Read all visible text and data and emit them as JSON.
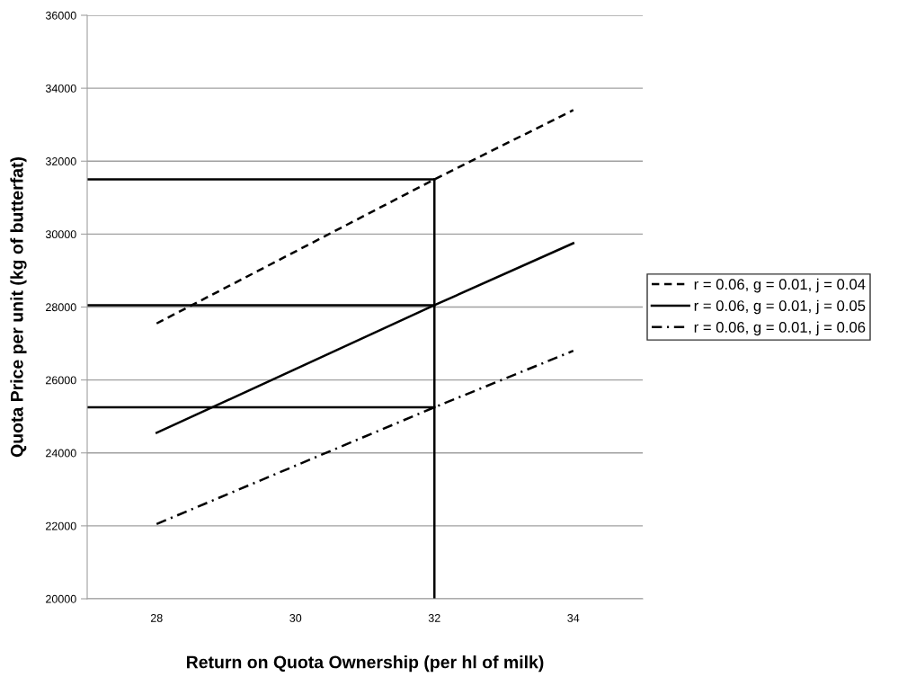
{
  "chart_data": {
    "type": "line",
    "xlabel": "Return on Quota Ownership (per hl of milk)",
    "ylabel": "Quota Price per unit (kg of butterfat)",
    "series": [
      {
        "name": "r = 0.06, g = 0.01, j = 0.04",
        "color": "#000000",
        "line_style": "dashed",
        "x": [
          28,
          32,
          34
        ],
        "values": [
          27550,
          31500,
          33400
        ]
      },
      {
        "name": "r = 0.06, g = 0.01, j = 0.05",
        "color": "#000000",
        "line_style": "solid",
        "x": [
          28,
          32,
          34
        ],
        "values": [
          24550,
          28050,
          29750
        ]
      },
      {
        "name": "r = 0.06, g = 0.01, j = 0.06",
        "color": "#000000",
        "line_style": "dashdot",
        "x": [
          28,
          32,
          34
        ],
        "values": [
          22050,
          25250,
          26800
        ]
      },
      {
        "color": "#000000",
        "line_style": "solid",
        "x": [
          27,
          32
        ],
        "values": [
          31500,
          31500
        ]
      },
      {
        "color": "#000000",
        "line_style": "solid",
        "x": [
          27,
          32
        ],
        "values": [
          28050,
          28050
        ]
      },
      {
        "color": "#000000",
        "line_style": "solid",
        "x": [
          27,
          32
        ],
        "values": [
          25250,
          25250
        ]
      },
      {
        "color": "#000000",
        "line_style": "solid",
        "x": [
          32,
          32
        ],
        "values": [
          20000,
          31500
        ]
      }
    ],
    "xlim": [
      27,
      35
    ],
    "xticks": [
      28,
      30,
      32,
      34
    ],
    "ylim": [
      20000,
      36000
    ],
    "yticks": [
      20000,
      22000,
      24000,
      26000,
      28000,
      30000,
      32000,
      34000,
      36000
    ],
    "grid": "y",
    "legend": "right"
  }
}
